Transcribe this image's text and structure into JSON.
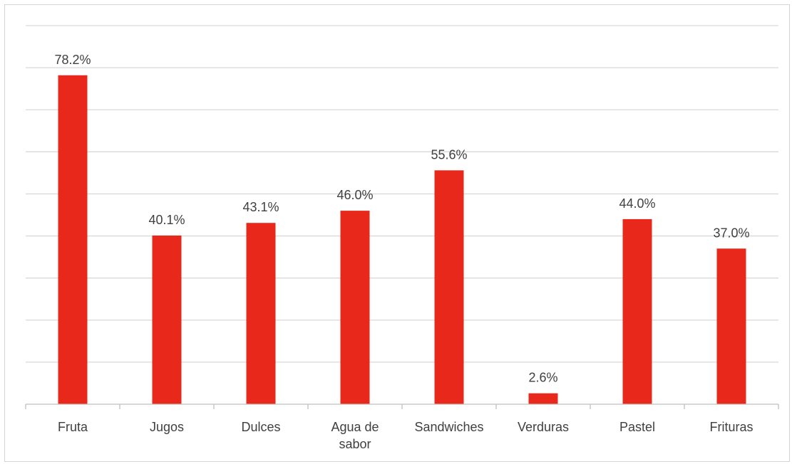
{
  "chart_data": {
    "type": "bar",
    "categories": [
      "Fruta",
      "Jugos",
      "Dulces",
      "Agua de sabor",
      "Sandwiches",
      "Verduras",
      "Pastel",
      "Frituras"
    ],
    "category_lines": [
      [
        "Fruta"
      ],
      [
        "Jugos"
      ],
      [
        "Dulces"
      ],
      [
        "Agua de",
        "sabor"
      ],
      [
        "Sandwiches"
      ],
      [
        "Verduras"
      ],
      [
        "Pastel"
      ],
      [
        "Frituras"
      ]
    ],
    "values": [
      78.2,
      40.1,
      43.1,
      46.0,
      55.6,
      2.6,
      44.0,
      37.0
    ],
    "data_labels": [
      "78.2%",
      "40.1%",
      "43.1%",
      "46.0%",
      "55.6%",
      "2.6%",
      "44.0%",
      "37.0%"
    ],
    "ylim": [
      0,
      90
    ],
    "gridline_step": 10,
    "grid": true,
    "bar_color": "#e8281a"
  }
}
